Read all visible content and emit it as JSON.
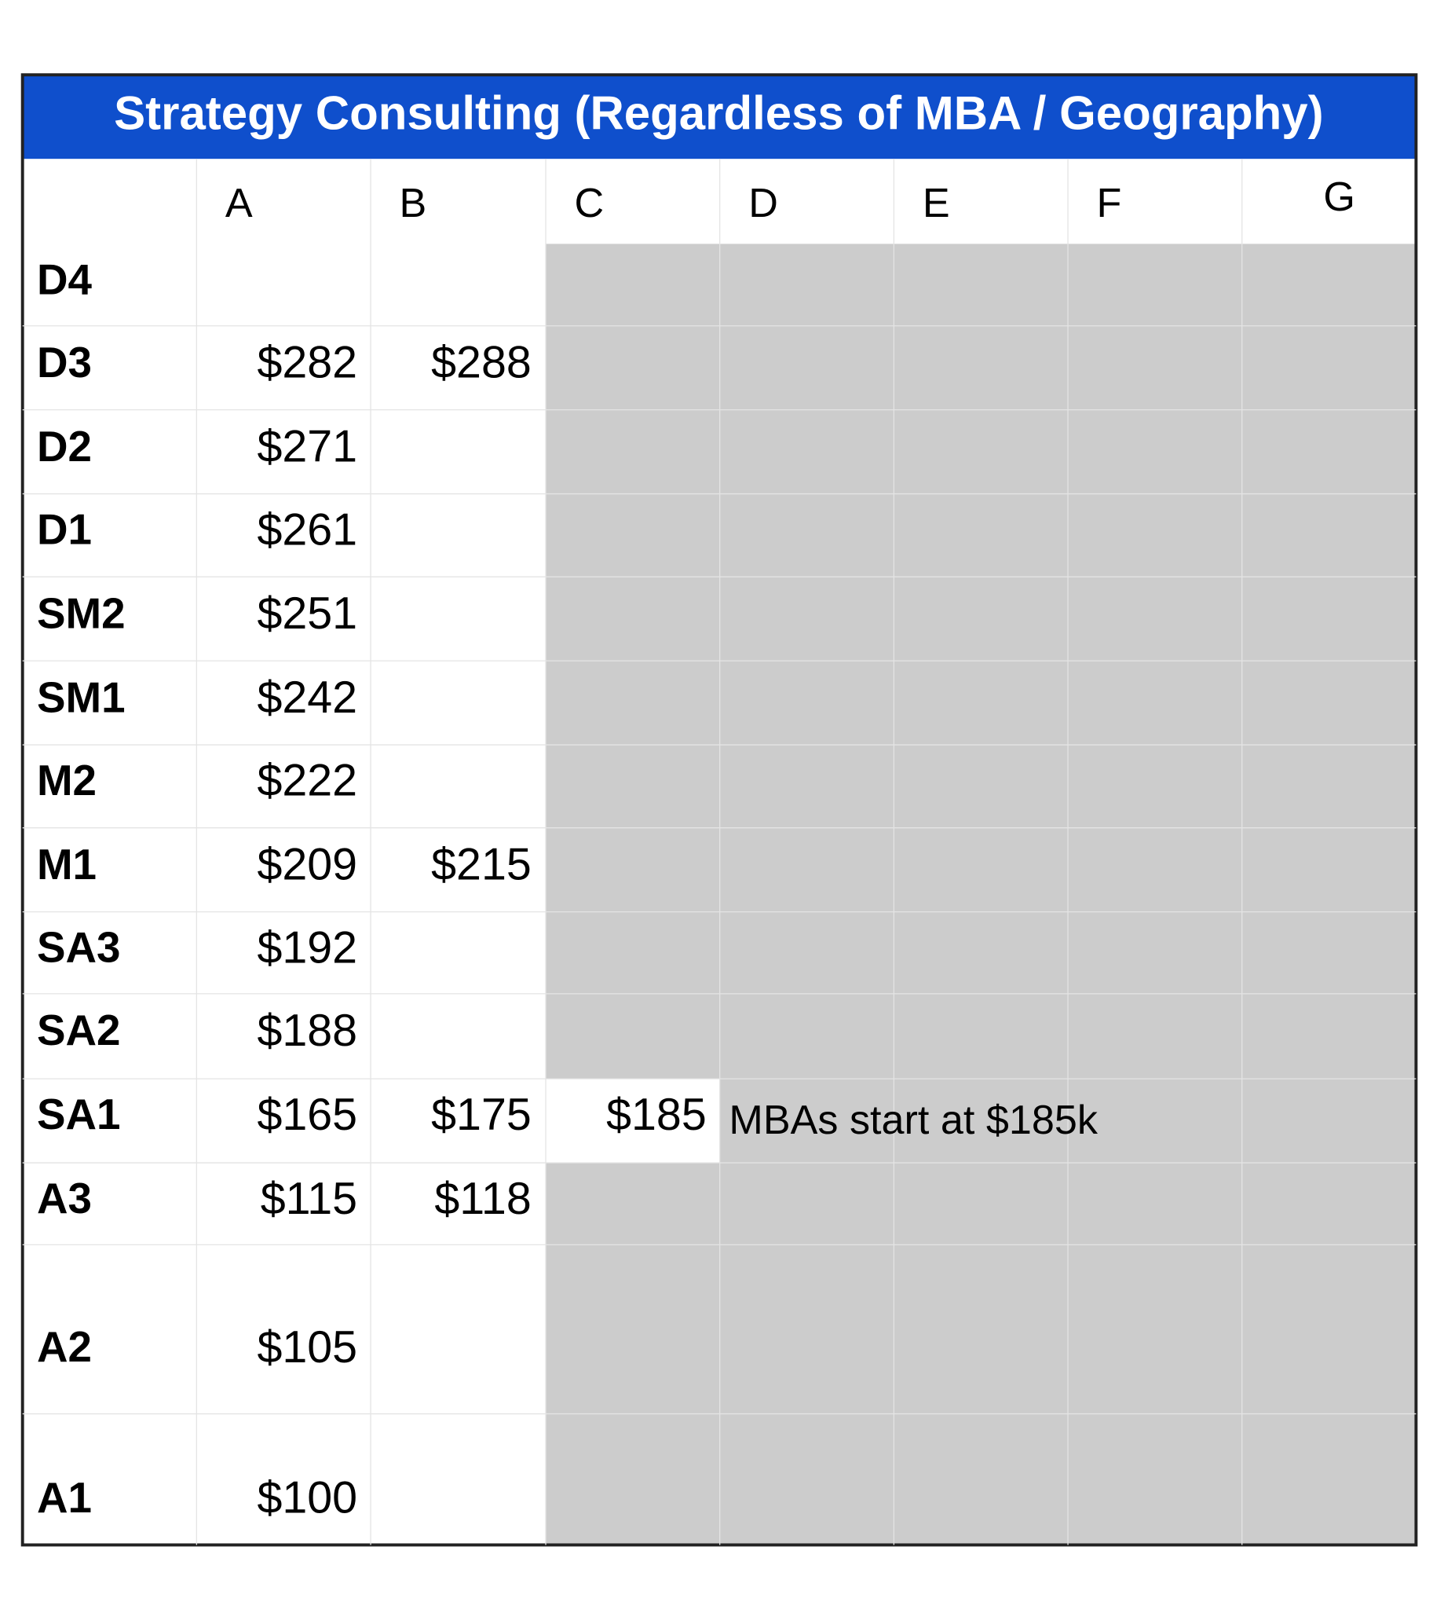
{
  "table": {
    "title": "Strategy Consulting (Regardless of MBA / Geography)",
    "columns": [
      "A",
      "B",
      "C",
      "D",
      "E",
      "F",
      "G"
    ],
    "rows": [
      {
        "label": "D4",
        "cells": [
          null,
          null,
          null,
          null,
          null,
          null,
          null
        ]
      },
      {
        "label": "D3",
        "cells": [
          "$282",
          "$288",
          null,
          null,
          null,
          null,
          null
        ]
      },
      {
        "label": "D2",
        "cells": [
          "$271",
          null,
          null,
          null,
          null,
          null,
          null
        ]
      },
      {
        "label": "D1",
        "cells": [
          "$261",
          null,
          null,
          null,
          null,
          null,
          null
        ]
      },
      {
        "label": "SM2",
        "cells": [
          "$251",
          null,
          null,
          null,
          null,
          null,
          null
        ]
      },
      {
        "label": "SM1",
        "cells": [
          "$242",
          null,
          null,
          null,
          null,
          null,
          null
        ]
      },
      {
        "label": "M2",
        "cells": [
          "$222",
          null,
          null,
          null,
          null,
          null,
          null
        ]
      },
      {
        "label": "M1",
        "cells": [
          "$209",
          "$215",
          null,
          null,
          null,
          null,
          null
        ]
      },
      {
        "label": "SA3",
        "cells": [
          "$192",
          null,
          null,
          null,
          null,
          null,
          null
        ]
      },
      {
        "label": "SA2",
        "cells": [
          "$188",
          null,
          null,
          null,
          null,
          null,
          null
        ]
      },
      {
        "label": "SA1",
        "cells": [
          "$165",
          "$175",
          "$185",
          "MBAs start at $185k",
          null,
          null,
          null
        ]
      },
      {
        "label": "A3",
        "cells": [
          "$115",
          "$118",
          null,
          null,
          null,
          null,
          null
        ]
      },
      {
        "label": "A2",
        "cells": [
          "$105",
          null,
          null,
          null,
          null,
          null,
          null
        ]
      },
      {
        "label": "A1",
        "cells": [
          "$100",
          null,
          null,
          null,
          null,
          null,
          null
        ]
      }
    ]
  }
}
